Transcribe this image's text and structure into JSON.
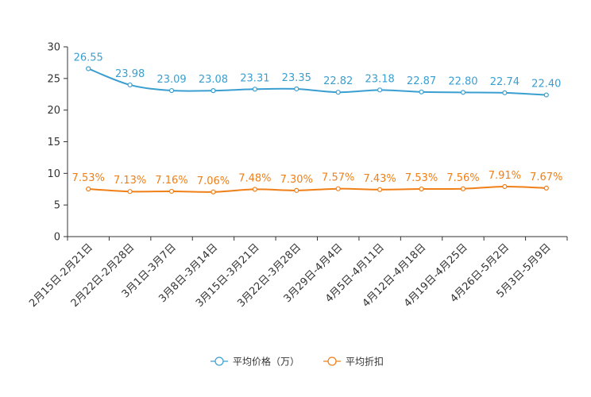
{
  "chart_data": {
    "type": "line",
    "categories": [
      "2月15日-2月21日",
      "2月22日-2月28日",
      "3月1日-3月7日",
      "3月8日-3月14日",
      "3月15日-3月21日",
      "3月22日-3月28日",
      "3月29日-4月4日",
      "4月5日-4月11日",
      "4月12日-4月18日",
      "4月19日-4月25日",
      "4月26日-5月2日",
      "5月3日-5月9日"
    ],
    "ylim": [
      0,
      30
    ],
    "yticks": [
      0,
      5,
      10,
      15,
      20,
      25,
      30
    ],
    "series": [
      {
        "name": "平均价格（万）",
        "color": "#3a9fd0",
        "values": [
          26.55,
          23.98,
          23.09,
          23.08,
          23.31,
          23.35,
          22.82,
          23.18,
          22.87,
          22.8,
          22.74,
          22.4
        ],
        "labels": [
          "26.55",
          "23.98",
          "23.09",
          "23.08",
          "23.31",
          "23.35",
          "22.82",
          "23.18",
          "22.87",
          "22.80",
          "22.74",
          "22.40"
        ]
      },
      {
        "name": "平均折扣",
        "color": "#f07f17",
        "values": [
          7.53,
          7.13,
          7.16,
          7.06,
          7.48,
          7.3,
          7.57,
          7.43,
          7.53,
          7.56,
          7.91,
          7.67
        ],
        "labels": [
          "7.53%",
          "7.13%",
          "7.16%",
          "7.06%",
          "7.48%",
          "7.30%",
          "7.57%",
          "7.43%",
          "7.53%",
          "7.56%",
          "7.91%",
          "7.67%"
        ]
      }
    ],
    "legend_position": "bottom-center"
  }
}
